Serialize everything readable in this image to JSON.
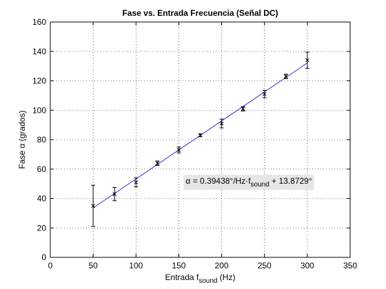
{
  "chart_data": {
    "type": "scatter",
    "title": "Fase vs. Entrada Frecuencia (Señal DC)",
    "xlabel": {
      "prefix": "Entrada f",
      "sub": "sound",
      "suffix": " (Hz)"
    },
    "ylabel": {
      "prefix": "Fase ",
      "greek": "α",
      "suffix": " (grados)"
    },
    "xlim": [
      0,
      350
    ],
    "ylim": [
      0,
      160
    ],
    "xticks": [
      0,
      50,
      100,
      150,
      200,
      250,
      300,
      350
    ],
    "yticks": [
      0,
      20,
      40,
      60,
      80,
      100,
      120,
      140,
      160
    ],
    "grid": true,
    "series": [
      {
        "marker": "x",
        "color": "#000000",
        "x": [
          50,
          75,
          100,
          125,
          150,
          175,
          200,
          225,
          250,
          275,
          300
        ],
        "y": [
          35,
          43,
          51,
          64,
          73,
          83,
          91,
          101,
          111,
          123,
          134
        ],
        "err": [
          14,
          4.5,
          3,
          1.5,
          2,
          1,
          3,
          1.5,
          2.5,
          1.5,
          5.5
        ]
      }
    ],
    "fit": {
      "color": "#0000cc",
      "slope": 0.39438,
      "intercept": 13.8729,
      "x_range": [
        50,
        300
      ]
    },
    "annotation": {
      "prefix": "α = 0.39438°/Hz·f",
      "sub": "sound",
      "suffix": " + 13.8729°",
      "anchor": [
        150,
        52
      ],
      "background": "#e6e6e6"
    }
  }
}
